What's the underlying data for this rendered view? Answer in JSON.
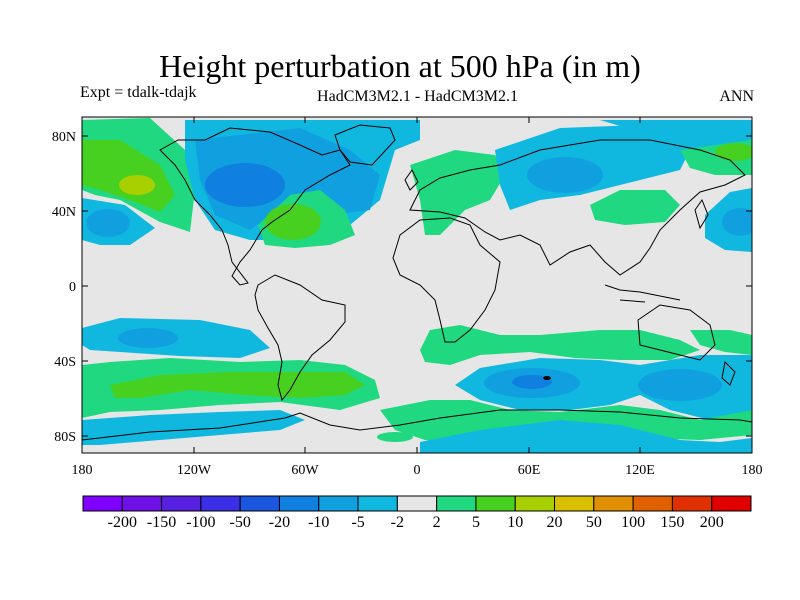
{
  "header": {
    "title": "Height perturbation at 500 hPa (in m)",
    "expt": "Expt = tdalk-tdajk",
    "model": "HadCM3M2.1 - HadCM3M2.1",
    "season": "ANN"
  },
  "axes": {
    "lat_labels": [
      "80N",
      "40N",
      "0",
      "40S",
      "80S"
    ],
    "lon_labels": [
      "180",
      "120W",
      "60W",
      "0",
      "60E",
      "120E",
      "180"
    ]
  },
  "colorbar": {
    "labels": [
      "-200",
      "-150",
      "-100",
      "-50",
      "-20",
      "-10",
      "-5",
      "-2",
      "2",
      "5",
      "10",
      "20",
      "50",
      "100",
      "150",
      "200"
    ],
    "colors": [
      "#8000ff",
      "#6f10e8",
      "#5820e0",
      "#3a2fe6",
      "#1a56e0",
      "#1080e0",
      "#10a0e0",
      "#10b8e0",
      "#e6e6e6",
      "#20d880",
      "#48d020",
      "#a8d000",
      "#d8c000",
      "#e09000",
      "#e06000",
      "#e03000",
      "#e00000"
    ]
  },
  "palette": {
    "background": "#e6e6e6",
    "blue_light": "#10b8e0",
    "blue_mid": "#10a0e0",
    "blue_dark": "#1080e0",
    "green_light": "#20d880",
    "green_mid": "#48d020",
    "yellow_green": "#a8d000"
  }
}
